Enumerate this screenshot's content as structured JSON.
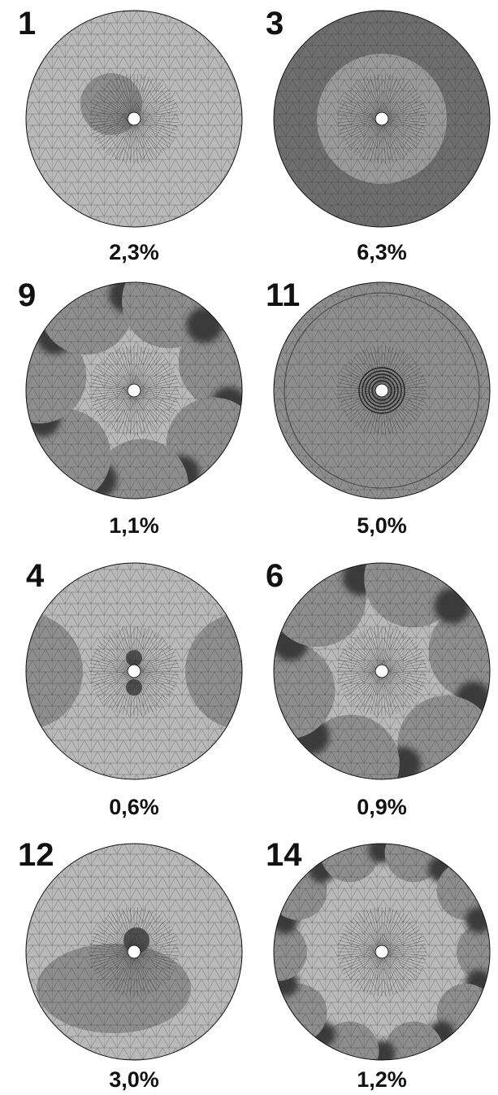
{
  "panels": [
    {
      "number": "1",
      "caption": "2,3%"
    },
    {
      "number": "3",
      "caption": "6,3%"
    },
    {
      "number": "9",
      "caption": "1,1%"
    },
    {
      "number": "11",
      "caption": "5,0%"
    },
    {
      "number": "4",
      "caption": "0,6%"
    },
    {
      "number": "6",
      "caption": "0,9%"
    },
    {
      "number": "12",
      "caption": "3,0%"
    },
    {
      "number": "14",
      "caption": "1,2%"
    }
  ]
}
